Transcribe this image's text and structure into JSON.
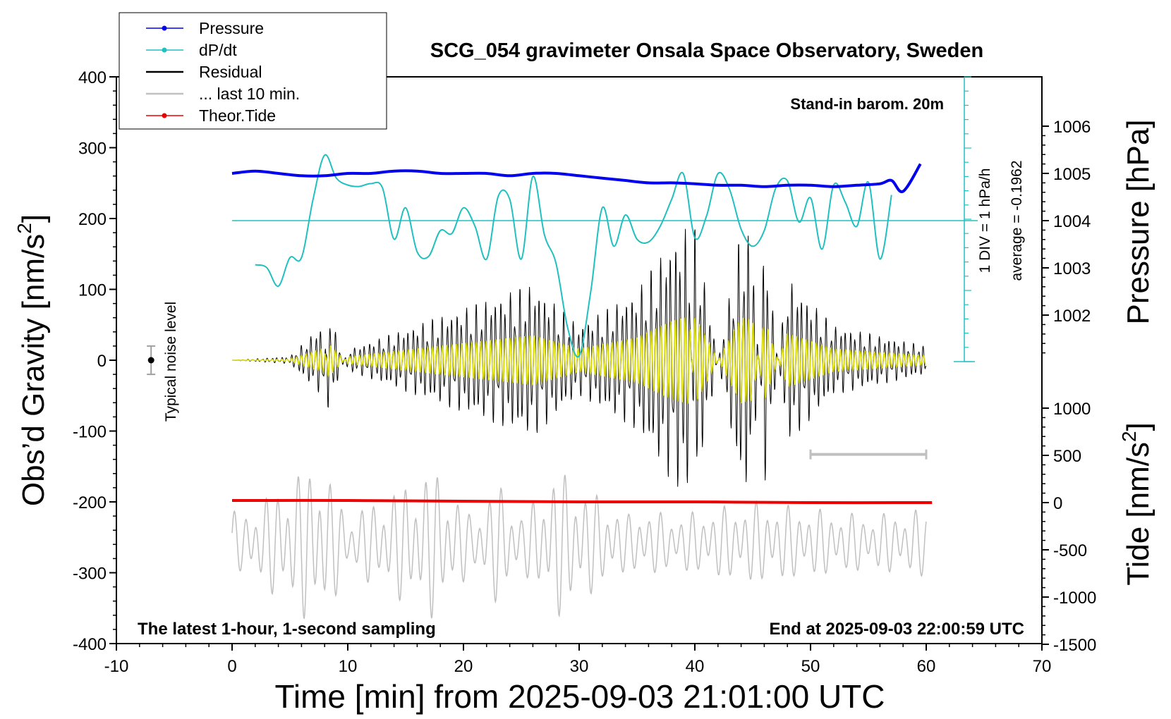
{
  "chart_data": {
    "type": "line",
    "title": "SCG_054 gravimeter Onsala Space Observatory, Sweden",
    "xlabel": "Time [min] from 2025-09-03 21:01:00 UTC",
    "ylabel_left_main": "Obs’d Gravity [nm/s",
    "ylabel_left_sup": "2",
    "ylabel_left_close": "]",
    "ylabel_right_top": "Pressure [hPa]",
    "ylabel_right_bottom_main": "Tide [nm/s",
    "ylabel_right_bottom_sup": "2",
    "ylabel_right_bottom_close": "]",
    "xlim": [
      -10,
      70
    ],
    "ylim": [
      -400,
      400
    ],
    "x_ticks": [
      "-10",
      "0",
      "10",
      "20",
      "30",
      "40",
      "50",
      "60",
      "70"
    ],
    "y_ticks": [
      "400",
      "300",
      "200",
      "100",
      "0",
      "-100",
      "-200",
      "-300",
      "-400"
    ],
    "pressure_ticks": [
      "1006",
      "1005",
      "1004",
      "1003",
      "1002"
    ],
    "tide_ticks": [
      "1000",
      "500",
      "0",
      "-500",
      "-1000",
      "-1500"
    ],
    "annotations": {
      "barom": "Stand-in barom. 20m",
      "div": "1 DIV = 1 hPa/h",
      "average": "average = -0.1962",
      "noise": "Typical noise level",
      "latest": "The latest 1-hour, 1-second sampling",
      "end": "End at 2025-09-03 22:00:59 UTC"
    },
    "legend_position": "top-left",
    "legend": [
      {
        "label": "Pressure",
        "color": "#0000ee",
        "marker": true
      },
      {
        "label": "dP/dt",
        "color": "#20c0c0",
        "marker": true
      },
      {
        "label": "Residual",
        "color": "#000000",
        "marker": false
      },
      {
        "label": "... last 10 min.",
        "color": "#c0c0c0",
        "marker": false
      },
      {
        "label": "Theor.Tide",
        "color": "#ee0000",
        "marker": true
      }
    ],
    "series": [
      {
        "name": "Pressure",
        "unit": "hPa",
        "color": "#0000ee",
        "x": [
          0,
          2,
          4,
          6,
          8,
          10,
          12,
          14,
          16,
          18,
          20,
          22,
          24,
          26,
          28,
          30,
          32,
          34,
          36,
          38,
          40,
          42,
          44,
          46,
          48,
          50,
          52,
          54,
          56,
          57,
          58,
          59.5
        ],
        "y": [
          1005.0,
          1005.05,
          1005.0,
          1004.95,
          1004.95,
          1005.0,
          1005.0,
          1005.05,
          1005.05,
          1005.0,
          1005.0,
          1005.0,
          1004.95,
          1005.0,
          1005.0,
          1004.95,
          1004.9,
          1004.85,
          1004.8,
          1004.8,
          1004.78,
          1004.75,
          1004.75,
          1004.72,
          1004.75,
          1004.75,
          1004.72,
          1004.75,
          1004.78,
          1004.85,
          1004.62,
          1005.2
        ]
      },
      {
        "name": "dP/dt",
        "unit": "hPa/h",
        "color": "#20c0c0",
        "x": [
          2,
          3,
          4,
          5,
          6,
          7,
          8,
          9,
          10,
          11,
          12,
          13,
          14,
          15,
          16,
          17,
          18,
          19,
          20,
          21,
          22,
          23,
          24,
          25,
          26,
          27,
          28,
          29,
          30,
          31,
          32,
          33,
          34,
          35,
          36,
          37,
          38,
          39,
          40,
          41,
          42,
          43,
          44,
          45,
          46,
          47,
          48,
          49,
          50,
          51,
          52,
          53,
          54,
          55,
          56,
          57
        ],
        "y": [
          -3.1,
          -3.3,
          -4.6,
          -2.6,
          -2.6,
          1.5,
          4.6,
          3.0,
          2.5,
          2.4,
          2.6,
          2.3,
          -1.3,
          0.9,
          -2.2,
          -2.5,
          -0.7,
          -0.9,
          0.9,
          -0.4,
          -2.7,
          1.7,
          1.5,
          -2.7,
          3.1,
          -1.0,
          -3.0,
          -7.5,
          -9.5,
          -5.0,
          0.9,
          -1.8,
          0.4,
          -1.3,
          -1.5,
          -0.4,
          1.5,
          3.3,
          -1.2,
          0.3,
          3.3,
          2.2,
          -0.6,
          -1.8,
          -0.7,
          2.3,
          2.8,
          -0.1,
          1.6,
          -2.0,
          2.5,
          1.3,
          -0.4,
          2.7,
          -2.7,
          1.8
        ]
      },
      {
        "name": "Residual",
        "unit": "nm/s2",
        "color": "#000000",
        "x": [
          0,
          5,
          8,
          8.3,
          10,
          17.5,
          26,
          30,
          33,
          35,
          38,
          39.5,
          40,
          44,
          45,
          46,
          48,
          52,
          60
        ],
        "y": [
          0,
          5,
          55,
          -75,
          15,
          60,
          110,
          50,
          80,
          100,
          175,
          195,
          -195,
          190,
          180,
          -185,
          120,
          50,
          20
        ]
      },
      {
        "name": "... last 10 min.",
        "unit": "nm/s2",
        "color": "#c0c0c0",
        "x": [
          0,
          7.5,
          10,
          17.5,
          23,
          28,
          35,
          45,
          55,
          60
        ],
        "y": [
          -260,
          -165,
          -250,
          -180,
          -300,
          -180,
          -260,
          -230,
          -250,
          -240
        ]
      },
      {
        "name": "Theor.Tide",
        "unit": "nm/s2",
        "color": "#ee0000",
        "x": [
          0,
          10,
          20,
          30,
          40,
          50,
          60.5
        ],
        "y": [
          -198,
          -198,
          -199,
          -200,
          -200,
          -201,
          -201
        ]
      }
    ],
    "noise_level": {
      "x": -7,
      "y": 0,
      "half_range": 20
    },
    "window_bar": {
      "x_start": 50,
      "x_end": 60,
      "y": -133
    }
  }
}
